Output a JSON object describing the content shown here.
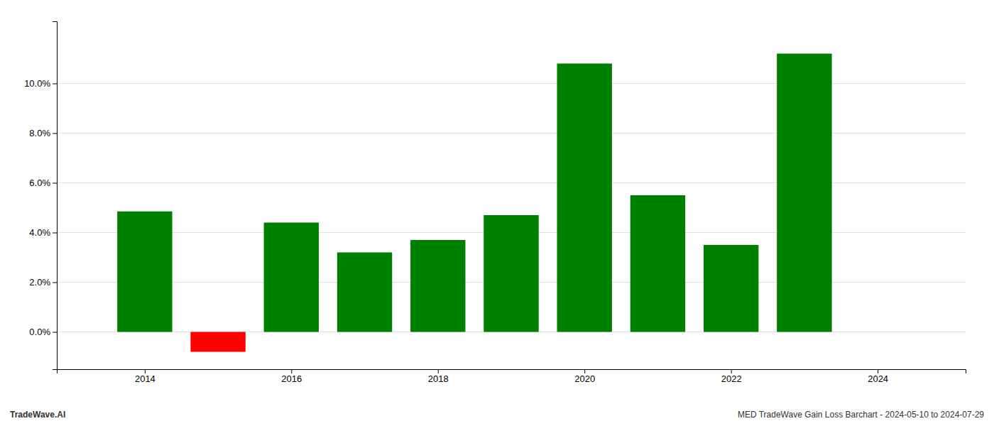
{
  "chart_data": {
    "type": "bar",
    "x": [
      2014,
      2015,
      2016,
      2017,
      2018,
      2019,
      2020,
      2021,
      2022,
      2023
    ],
    "values": [
      0.0485,
      -0.008,
      0.044,
      0.032,
      0.037,
      0.047,
      0.108,
      0.055,
      0.035,
      0.112
    ],
    "colors": [
      "#008000",
      "#ff0000",
      "#008000",
      "#008000",
      "#008000",
      "#008000",
      "#008000",
      "#008000",
      "#008000",
      "#008000"
    ],
    "xlim": [
      2012.8,
      2025.2
    ],
    "xticks": [
      2014,
      2016,
      2018,
      2020,
      2022,
      2024
    ],
    "ylim": [
      -0.015,
      0.125
    ],
    "yticks": [
      {
        "value": 0.0,
        "label": "0.0%"
      },
      {
        "value": 0.02,
        "label": "2.0%"
      },
      {
        "value": 0.04,
        "label": "4.0%"
      },
      {
        "value": 0.06,
        "label": "6.0%"
      },
      {
        "value": 0.08,
        "label": "8.0%"
      },
      {
        "value": 0.1,
        "label": "10.0%"
      }
    ],
    "grid": true,
    "annotations": [
      "TradeWave.AI",
      "MED TradeWave Gain Loss Barchart - 2024-05-10 to 2024-07-29"
    ]
  }
}
